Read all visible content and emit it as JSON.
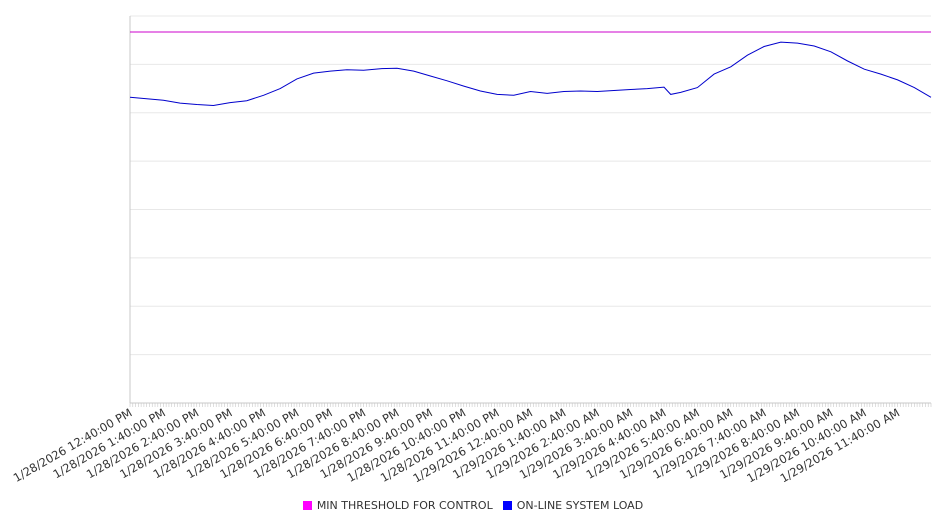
{
  "chart_data": {
    "type": "line",
    "title": "",
    "xlabel": "",
    "ylabel": "",
    "ylim": [
      0,
      800
    ],
    "grid": true,
    "legend_position": "bottom",
    "x_tick_labels": [
      "1/28/2026 12:40:00 PM",
      "1/28/2026 1:40:00 PM",
      "1/28/2026 2:40:00 PM",
      "1/28/2026 3:40:00 PM",
      "1/28/2026 4:40:00 PM",
      "1/28/2026 5:40:00 PM",
      "1/28/2026 6:40:00 PM",
      "1/28/2026 7:40:00 PM",
      "1/28/2026 8:40:00 PM",
      "1/28/2026 9:40:00 PM",
      "1/28/2026 10:40:00 PM",
      "1/28/2026 11:40:00 PM",
      "1/29/2026 12:40:00 AM",
      "1/29/2026 1:40:00 AM",
      "1/29/2026 2:40:00 AM",
      "1/29/2026 3:40:00 AM",
      "1/29/2026 4:40:00 AM",
      "1/29/2026 5:40:00 AM",
      "1/29/2026 6:40:00 AM",
      "1/29/2026 7:40:00 AM",
      "1/29/2026 8:40:00 AM",
      "1/29/2026 9:40:00 AM",
      "1/29/2026 10:40:00 AM",
      "1/29/2026 11:40:00 AM"
    ],
    "x_hours_range": [
      0,
      24
    ],
    "series": [
      {
        "name": "MIN THRESHOLD FOR CONTROL",
        "color": "#cc00cc",
        "x": [
          0,
          24
        ],
        "values": [
          767,
          767
        ]
      },
      {
        "name": "ON-LINE SYSTEM LOAD",
        "color": "#0000cc",
        "x": [
          0,
          0.5,
          1,
          1.5,
          2,
          2.5,
          3,
          3.5,
          4,
          4.5,
          5,
          5.5,
          6,
          6.5,
          7,
          7.5,
          8,
          8.5,
          9,
          9.5,
          10,
          10.5,
          11,
          11.5,
          12,
          12.5,
          13,
          13.5,
          14,
          14.5,
          15,
          15.5,
          16,
          16.2,
          16.5,
          17,
          17.5,
          18,
          18.5,
          19,
          19.5,
          20,
          20.5,
          21,
          21.5,
          22,
          22.5,
          23,
          23.5,
          24
        ],
        "values": [
          632,
          629,
          626,
          620,
          617,
          615,
          621,
          625,
          636,
          650,
          670,
          682,
          686,
          689,
          688,
          691,
          692,
          686,
          676,
          666,
          655,
          645,
          638,
          636,
          644,
          640,
          644,
          645,
          644,
          646,
          648,
          650,
          653,
          638,
          642,
          652,
          680,
          695,
          719,
          737,
          746,
          744,
          738,
          726,
          707,
          690,
          680,
          668,
          652,
          632
        ]
      }
    ]
  }
}
